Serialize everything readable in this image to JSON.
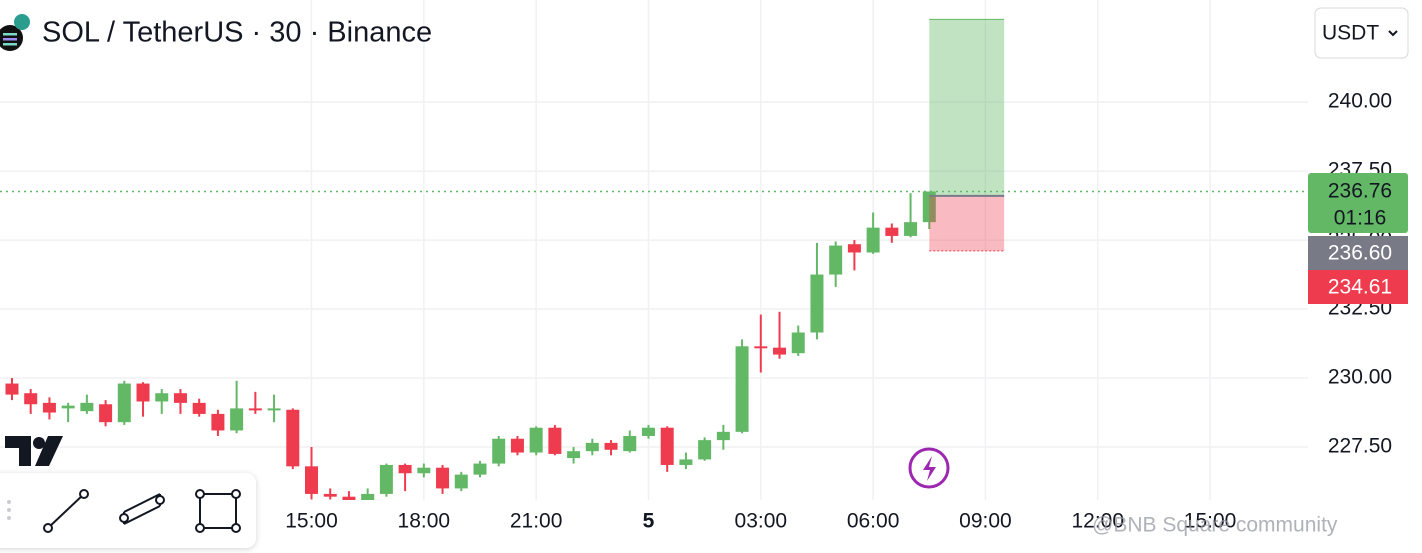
{
  "chart_data": {
    "type": "candlestick",
    "title": "SOL / TetherUS · 30 · Binance",
    "currency": "USDT",
    "open": [
      229.8,
      229.45,
      229.1,
      228.9,
      228.8,
      229.05,
      228.4,
      229.8,
      229.15,
      229.45,
      229.1,
      228.7,
      228.1,
      228.9,
      228.85,
      228.85,
      226.8,
      225.8,
      225.7,
      225.5,
      225.8,
      226.85,
      226.55,
      226.75,
      226.0,
      226.5,
      226.9,
      227.8,
      227.3,
      228.2,
      227.1,
      227.35,
      227.65,
      227.35,
      227.9,
      228.2,
      226.85,
      227.05,
      227.75,
      228.05,
      231.15,
      231.1,
      230.9,
      231.65,
      233.75,
      234.85,
      234.55,
      235.45,
      235.15,
      235.65
    ],
    "high": [
      230.0,
      229.6,
      229.3,
      229.1,
      229.4,
      229.2,
      229.9,
      229.85,
      229.6,
      229.6,
      229.25,
      228.85,
      229.9,
      229.5,
      229.4,
      228.9,
      227.5,
      226.0,
      225.9,
      226.0,
      226.9,
      226.9,
      226.9,
      226.85,
      226.6,
      227.0,
      227.9,
      227.9,
      228.25,
      228.3,
      227.5,
      227.8,
      227.75,
      228.1,
      228.3,
      228.25,
      227.3,
      227.85,
      228.3,
      231.4,
      232.3,
      232.4,
      231.9,
      234.9,
      234.95,
      235.0,
      236.0,
      235.6,
      236.7,
      236.76
    ],
    "low": [
      229.2,
      228.7,
      228.5,
      228.4,
      228.7,
      228.25,
      228.3,
      228.6,
      228.7,
      228.7,
      228.6,
      227.9,
      228.0,
      228.7,
      228.4,
      226.7,
      225.6,
      225.6,
      225.2,
      225.3,
      225.7,
      225.9,
      226.4,
      225.8,
      225.9,
      226.4,
      226.8,
      227.2,
      227.2,
      227.2,
      226.9,
      227.2,
      227.2,
      227.3,
      227.8,
      226.6,
      226.7,
      227.0,
      227.4,
      228.0,
      230.2,
      230.7,
      230.8,
      231.4,
      233.3,
      233.9,
      234.5,
      234.9,
      235.1,
      235.4
    ],
    "close": [
      229.4,
      229.05,
      228.75,
      229.0,
      229.1,
      228.4,
      229.8,
      229.15,
      229.45,
      229.1,
      228.7,
      228.1,
      228.9,
      228.85,
      228.9,
      226.8,
      225.8,
      225.7,
      225.5,
      225.8,
      226.85,
      226.55,
      226.75,
      226.0,
      226.5,
      226.9,
      227.8,
      227.3,
      228.2,
      227.25,
      227.35,
      227.65,
      227.4,
      227.9,
      228.2,
      226.85,
      227.05,
      227.75,
      228.05,
      231.15,
      231.1,
      230.85,
      231.65,
      233.75,
      234.8,
      234.55,
      235.45,
      235.15,
      235.65,
      236.76
    ],
    "up_color": "#63b866",
    "down_color": "#ee3b4e",
    "xlim": [
      -0.64,
      69.23
    ],
    "xticks": [
      {
        "value": 16,
        "label": "15:00"
      },
      {
        "value": 22,
        "label": "18:00"
      },
      {
        "value": 28,
        "label": "21:00"
      },
      {
        "value": 34,
        "label": "5"
      },
      {
        "value": 40,
        "label": "03:00"
      },
      {
        "value": 46,
        "label": "06:00"
      },
      {
        "value": 52,
        "label": "09:00"
      },
      {
        "value": 58,
        "label": "12:00"
      },
      {
        "value": 64,
        "label": "15:00"
      }
    ],
    "ylim": [
      225.58,
      243.7
    ],
    "yticks": [
      {
        "value": 227.5,
        "label": "227.50"
      },
      {
        "value": 230,
        "label": "230.00"
      },
      {
        "value": 232.5,
        "label": "232.50"
      },
      {
        "value": 235,
        "label": "235.00"
      },
      {
        "value": 237.5,
        "label": "237.50"
      },
      {
        "value": 240,
        "label": "240.00"
      }
    ],
    "grid": true,
    "current_price": {
      "value": 236.76,
      "countdown": "01:16"
    },
    "position": {
      "entry": {
        "value": 236.6,
        "label": "236.60"
      },
      "stop": 234.61,
      "target": 243.0,
      "start": 49,
      "end": 53
    },
    "watermark": "@BNB Square community"
  }
}
